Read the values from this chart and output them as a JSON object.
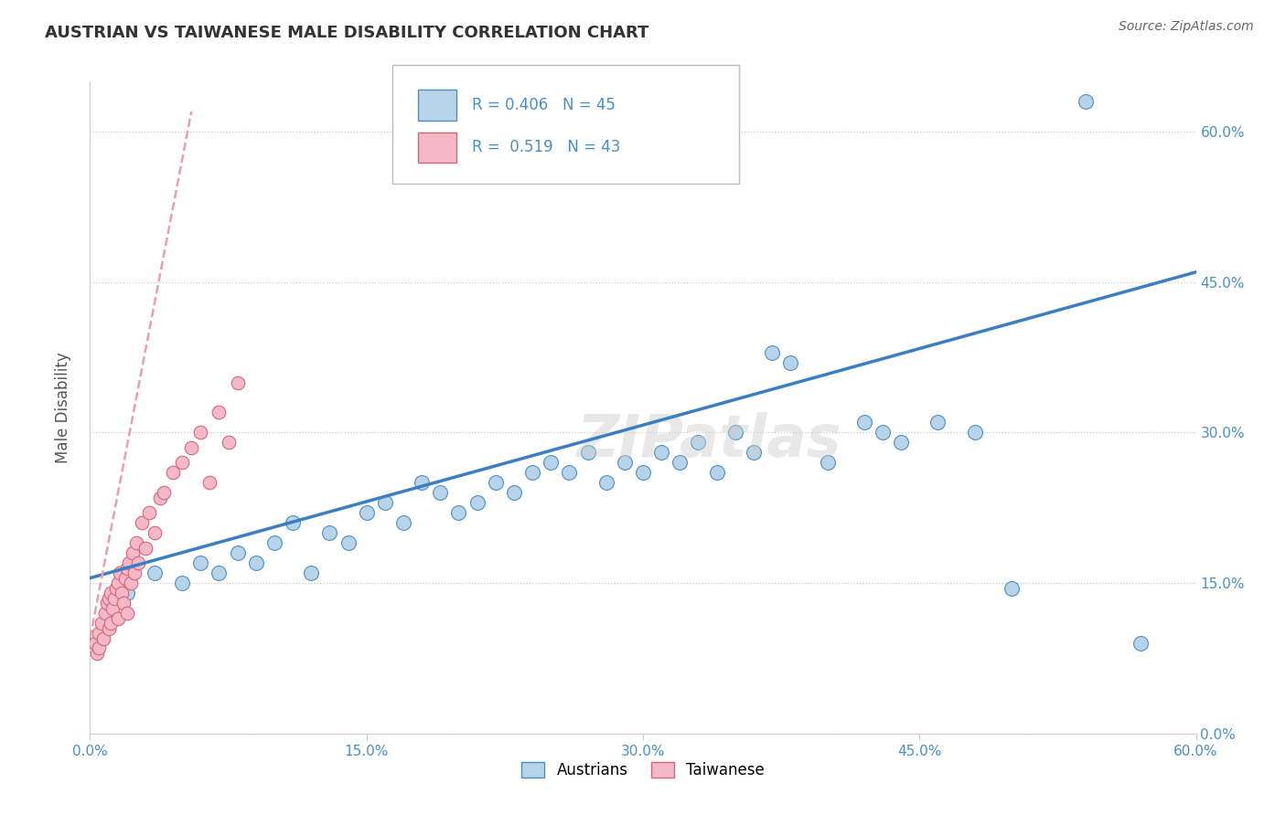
{
  "title": "AUSTRIAN VS TAIWANESE MALE DISABILITY CORRELATION CHART",
  "source": "Source: ZipAtlas.com",
  "ylabel": "Male Disability",
  "xlim": [
    0.0,
    60.0
  ],
  "ylim": [
    0.0,
    65.0
  ],
  "x_tick_vals": [
    0,
    15,
    30,
    45,
    60
  ],
  "y_tick_vals": [
    0,
    15,
    30,
    45,
    60
  ],
  "legend_entries": [
    {
      "label": "Austrians",
      "R": "0.406",
      "N": "45",
      "face_color": "#b8d4ea",
      "edge_color": "#4a90c4"
    },
    {
      "label": "Taiwanese",
      "R": "0.519",
      "N": "43",
      "face_color": "#f5b8c8",
      "edge_color": "#d06878"
    }
  ],
  "blue_line_color": "#3a7fc1",
  "pink_line_color": "#e8a0b0",
  "label_color": "#4a90c4",
  "watermark": "ZIPatlas",
  "austrians_x": [
    2.0,
    3.5,
    5.0,
    6.0,
    7.0,
    8.0,
    9.0,
    10.0,
    11.0,
    12.0,
    13.0,
    14.0,
    15.0,
    16.0,
    17.0,
    18.0,
    19.0,
    20.0,
    21.0,
    22.0,
    23.0,
    24.0,
    25.0,
    26.0,
    27.0,
    28.0,
    29.0,
    30.0,
    31.0,
    32.0,
    33.0,
    34.0,
    35.0,
    36.0,
    37.0,
    38.0,
    40.0,
    42.0,
    43.0,
    44.0,
    46.0,
    48.0,
    50.0,
    54.0,
    57.0
  ],
  "austrians_y": [
    14.0,
    16.0,
    15.0,
    17.0,
    16.0,
    18.0,
    17.0,
    19.0,
    21.0,
    16.0,
    20.0,
    19.0,
    22.0,
    23.0,
    21.0,
    25.0,
    24.0,
    22.0,
    23.0,
    25.0,
    24.0,
    26.0,
    27.0,
    26.0,
    28.0,
    25.0,
    27.0,
    26.0,
    28.0,
    27.0,
    29.0,
    26.0,
    30.0,
    28.0,
    38.0,
    37.0,
    27.0,
    31.0,
    30.0,
    29.0,
    31.0,
    30.0,
    14.5,
    63.0,
    9.0
  ],
  "taiwanese_x": [
    0.3,
    0.4,
    0.5,
    0.5,
    0.6,
    0.7,
    0.8,
    0.9,
    1.0,
    1.0,
    1.1,
    1.1,
    1.2,
    1.3,
    1.4,
    1.5,
    1.5,
    1.6,
    1.7,
    1.8,
    1.9,
    2.0,
    2.0,
    2.1,
    2.2,
    2.3,
    2.4,
    2.5,
    2.6,
    2.8,
    3.0,
    3.2,
    3.5,
    3.8,
    4.0,
    4.5,
    5.0,
    5.5,
    6.0,
    6.5,
    7.0,
    7.5,
    8.0
  ],
  "taiwanese_y": [
    9.0,
    8.0,
    10.0,
    8.5,
    11.0,
    9.5,
    12.0,
    13.0,
    13.5,
    10.5,
    14.0,
    11.0,
    12.5,
    13.5,
    14.5,
    15.0,
    11.5,
    16.0,
    14.0,
    13.0,
    15.5,
    16.5,
    12.0,
    17.0,
    15.0,
    18.0,
    16.0,
    19.0,
    17.0,
    21.0,
    18.5,
    22.0,
    20.0,
    23.5,
    24.0,
    26.0,
    27.0,
    28.5,
    30.0,
    25.0,
    32.0,
    29.0,
    35.0
  ],
  "blue_trendline_x": [
    0.0,
    60.0
  ],
  "blue_trendline_y": [
    15.5,
    46.0
  ],
  "pink_trendline_x": [
    0.0,
    5.5
  ],
  "pink_trendline_y": [
    9.5,
    62.0
  ]
}
